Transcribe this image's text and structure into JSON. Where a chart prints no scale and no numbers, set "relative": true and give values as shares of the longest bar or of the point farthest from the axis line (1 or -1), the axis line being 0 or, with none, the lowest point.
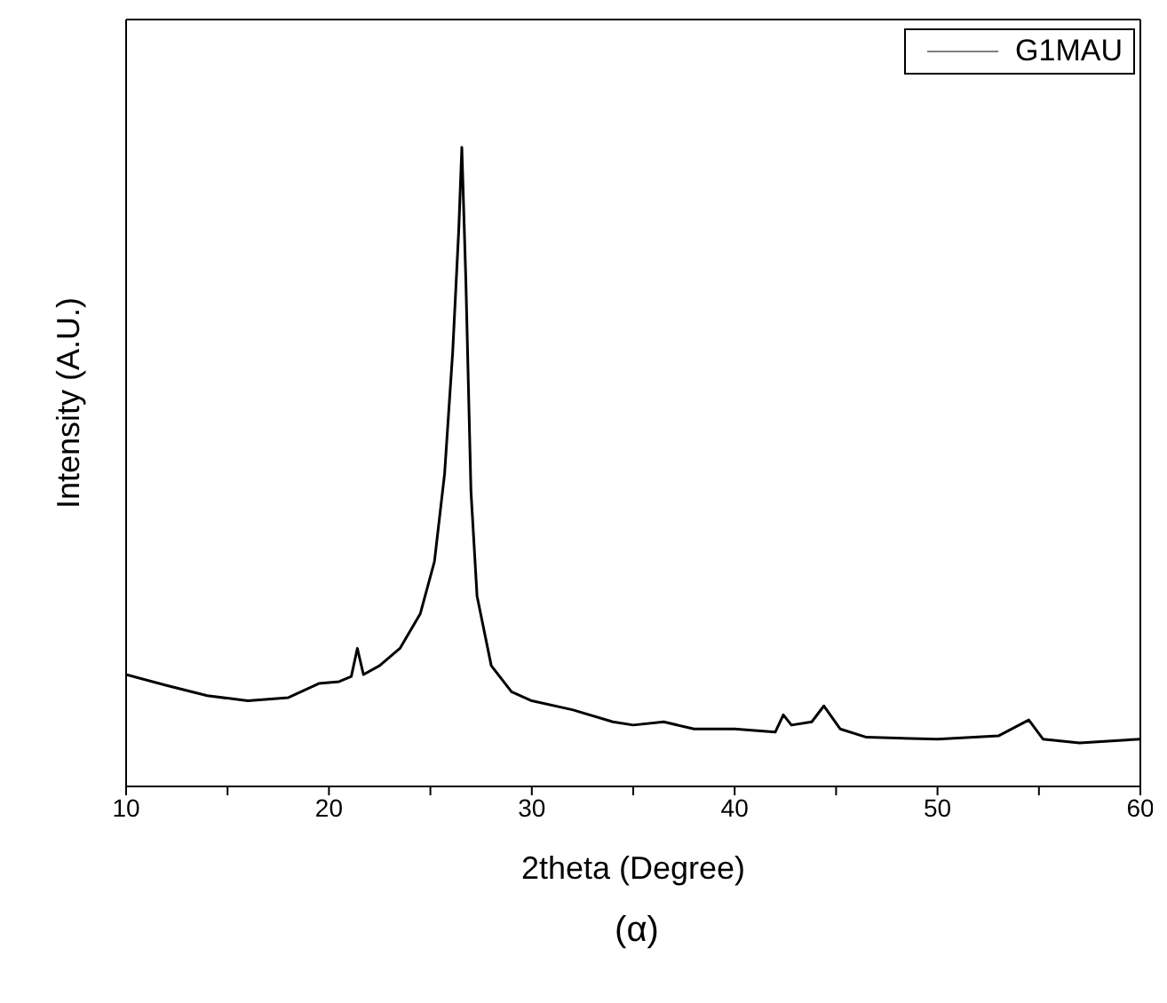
{
  "chart_data": {
    "type": "line",
    "relative": true,
    "xlabel": "2theta (Degree)",
    "ylabel": "Intensity (A.U.)",
    "annotations": [
      "(α)"
    ],
    "legend": "top right",
    "marker": "none",
    "xlim": [
      10,
      60
    ],
    "xticks": [
      10,
      {
        "value": 15,
        "label": null
      },
      20,
      {
        "value": 25,
        "label": null
      },
      30,
      {
        "value": 35,
        "label": null
      },
      40,
      {
        "value": 45,
        "label": null
      },
      50,
      {
        "value": 55,
        "label": null
      },
      60
    ],
    "series": [
      {
        "name": "G1MAU",
        "color": "#000000",
        "x": [
          10,
          12,
          14,
          16,
          18,
          19.5,
          20.5,
          21.1,
          21.4,
          21.7,
          22.5,
          23.5,
          24.5,
          25.2,
          25.7,
          26.1,
          26.4,
          26.55,
          26.75,
          27,
          27.3,
          28,
          29,
          30,
          32,
          34,
          35,
          36.5,
          38,
          40,
          42,
          42.4,
          42.8,
          43.8,
          44.4,
          45.2,
          46.5,
          50,
          53,
          54.5,
          55.2,
          57,
          60
        ],
        "values": [
          0.175,
          0.158,
          0.142,
          0.134,
          0.139,
          0.161,
          0.164,
          0.172,
          0.216,
          0.175,
          0.189,
          0.216,
          0.27,
          0.352,
          0.489,
          0.68,
          0.872,
          1,
          0.79,
          0.462,
          0.298,
          0.189,
          0.148,
          0.134,
          0.12,
          0.101,
          0.096,
          0.101,
          0.09,
          0.09,
          0.085,
          0.112,
          0.096,
          0.101,
          0.126,
          0.09,
          0.077,
          0.074,
          0.079,
          0.104,
          0.074,
          0.068,
          0.074
        ]
      }
    ]
  }
}
